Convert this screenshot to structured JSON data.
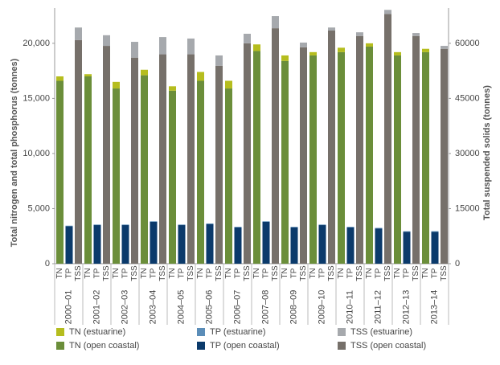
{
  "chart_data": {
    "type": "grouped-stacked-bar",
    "ylabel": "Total nitrogen and total phosphorus (tonnes)",
    "y2label": "Total suspended solids (tonnes)",
    "categories": [
      "2000–01",
      "2001–02",
      "2002–03",
      "2003–04",
      "2004–05",
      "2005–06",
      "2006–07",
      "2007–08",
      "2008–09",
      "2009–10",
      "2010–11",
      "2011–12",
      "2012–13",
      "2013–14"
    ],
    "bar_labels": [
      "TN",
      "TP",
      "TSS"
    ],
    "ylim": [
      0,
      23200
    ],
    "yticks": [
      0,
      {
        "value": 5000,
        "label": "5,000"
      },
      {
        "value": 10000,
        "label": "10,000"
      },
      {
        "value": 15000,
        "label": "15,000"
      },
      {
        "value": 20000,
        "label": "20,000"
      }
    ],
    "y2lim": [
      0,
      69600
    ],
    "y2ticks": [
      0,
      15000,
      30000,
      45000,
      60000
    ],
    "series": [
      {
        "name": "TN (open coastal)",
        "color": "#6b8e3a",
        "stack": "TN",
        "values": [
          16600,
          17000,
          15900,
          17100,
          15700,
          16600,
          15900,
          19300,
          18400,
          18900,
          19200,
          19700,
          18900,
          19200
        ]
      },
      {
        "name": "TN (estuarine)",
        "color": "#b5bd1e",
        "stack": "TN",
        "values": [
          400,
          200,
          600,
          500,
          400,
          800,
          700,
          600,
          500,
          300,
          400,
          300,
          300,
          300
        ]
      },
      {
        "name": "TP (open coastal)",
        "color": "#0b3a6b",
        "stack": "TP",
        "values": [
          3400,
          3500,
          3500,
          3800,
          3500,
          3600,
          3300,
          3800,
          3300,
          3500,
          3300,
          3200,
          2900,
          2900
        ]
      },
      {
        "name": "TP (estuarine)",
        "color": "#5b8db8",
        "stack": "TP",
        "values": [
          50,
          50,
          50,
          50,
          50,
          50,
          50,
          50,
          50,
          50,
          50,
          50,
          50,
          50
        ]
      },
      {
        "name": "TSS (open coastal)",
        "color": "#76706a",
        "stack": "TSS",
        "axis": "y2",
        "values": [
          60900,
          59300,
          56100,
          57000,
          57000,
          53900,
          60000,
          64100,
          58900,
          63500,
          62000,
          68000,
          62000,
          58500
        ]
      },
      {
        "name": "TSS (estuarine)",
        "color": "#a6a9ad",
        "stack": "TSS",
        "axis": "y2",
        "values": [
          3400,
          2900,
          4300,
          4700,
          4300,
          2800,
          2600,
          3300,
          1300,
          800,
          1000,
          1100,
          800,
          800
        ]
      }
    ],
    "legend_order": [
      "TN (estuarine)",
      "TP (estuarine)",
      "TSS (estuarine)",
      "TN (open coastal)",
      "TP (open coastal)",
      "TSS (open coastal)"
    ]
  }
}
